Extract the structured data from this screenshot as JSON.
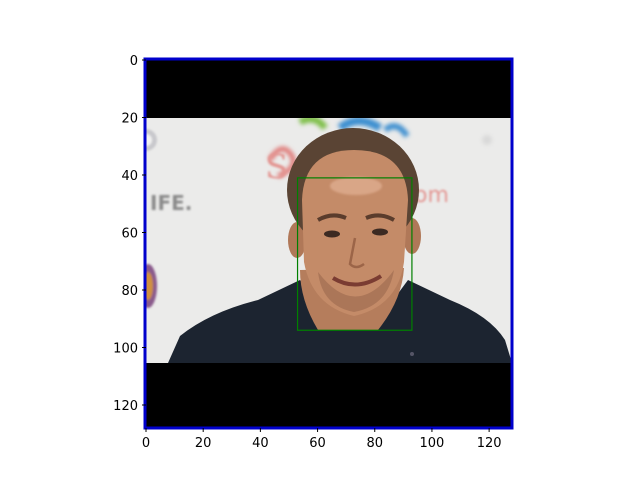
{
  "axes": {
    "x_ticks": [
      "0",
      "20",
      "40",
      "60",
      "80",
      "100",
      "120"
    ],
    "y_ticks": [
      "0",
      "20",
      "40",
      "60",
      "80",
      "100",
      "120"
    ],
    "x_range": [
      0,
      128
    ],
    "y_range": [
      0,
      128
    ],
    "y_inverted": true,
    "grid": false
  },
  "image": {
    "subject": "photo of a short-haired smiling man in a dark shirt against a light background with partial logo/text behind",
    "letterbox_top_rows": [
      0,
      20
    ],
    "letterbox_bottom_rows": [
      106,
      128
    ],
    "frame_color": "#0000cc",
    "letterbox_color": "#000000",
    "background_color": "#eaeaea"
  },
  "overlay": {
    "face_box": {
      "x_min": 53,
      "x_max": 93,
      "y_min": 41,
      "y_max": 94
    },
    "face_box_color": "#008000"
  },
  "background_text": {
    "left_fragment": "IFE.",
    "script_fragment": "S",
    "om_fragment": "om"
  }
}
